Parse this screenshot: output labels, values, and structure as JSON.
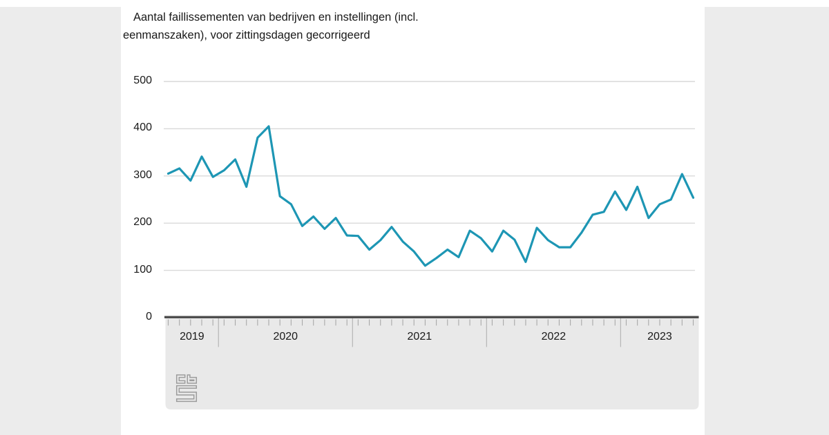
{
  "page": {
    "background_color": "#ececec",
    "card_color": "#ffffff"
  },
  "header": {
    "title_line1": "Aantal faillissementen van bedrijven en instellingen (incl.",
    "title_line2": "eenmanszaken), voor zittingsdagen gecorrigeerd"
  },
  "chart_data": {
    "type": "line",
    "title": "Aantal faillissementen van bedrijven en instellingen (incl. eenmanszaken), voor zittingsdagen gecorrigeerd",
    "x_frequency": "monthly",
    "x_start": "2019-08",
    "x_end": "2023-07",
    "year_sections": [
      {
        "label": "2019",
        "months": 5
      },
      {
        "label": "2020",
        "months": 12
      },
      {
        "label": "2021",
        "months": 12
      },
      {
        "label": "2022",
        "months": 12
      },
      {
        "label": "2023",
        "months": 7
      }
    ],
    "y_axis": {
      "ticks": [
        0,
        100,
        200,
        300,
        400,
        500
      ],
      "range": [
        0,
        500
      ]
    },
    "grid": true,
    "legend_position": "none",
    "series": [
      {
        "name": "Aantal faillissementen",
        "color": "#1d96b4",
        "values": [
          305,
          316,
          290,
          341,
          298,
          312,
          335,
          277,
          381,
          405,
          257,
          240,
          194,
          214,
          188,
          211,
          174,
          173,
          144,
          164,
          192,
          161,
          140,
          110,
          126,
          144,
          128,
          184,
          168,
          140,
          184,
          165,
          118,
          190,
          164,
          149,
          149,
          180,
          218,
          224,
          267,
          228,
          277,
          211,
          240,
          250,
          304,
          254
        ]
      }
    ],
    "colors": {
      "line": "#1d96b4",
      "gridline": "#d9d9d9",
      "axis_bar": "#4e4e4e",
      "band": "#e9e9e9",
      "tick": "#a8a8a8",
      "separator": "#b5b5b5",
      "text": "#191919",
      "logo": "#9c9c9c"
    }
  },
  "footer": {
    "logo_name": "CBS"
  }
}
